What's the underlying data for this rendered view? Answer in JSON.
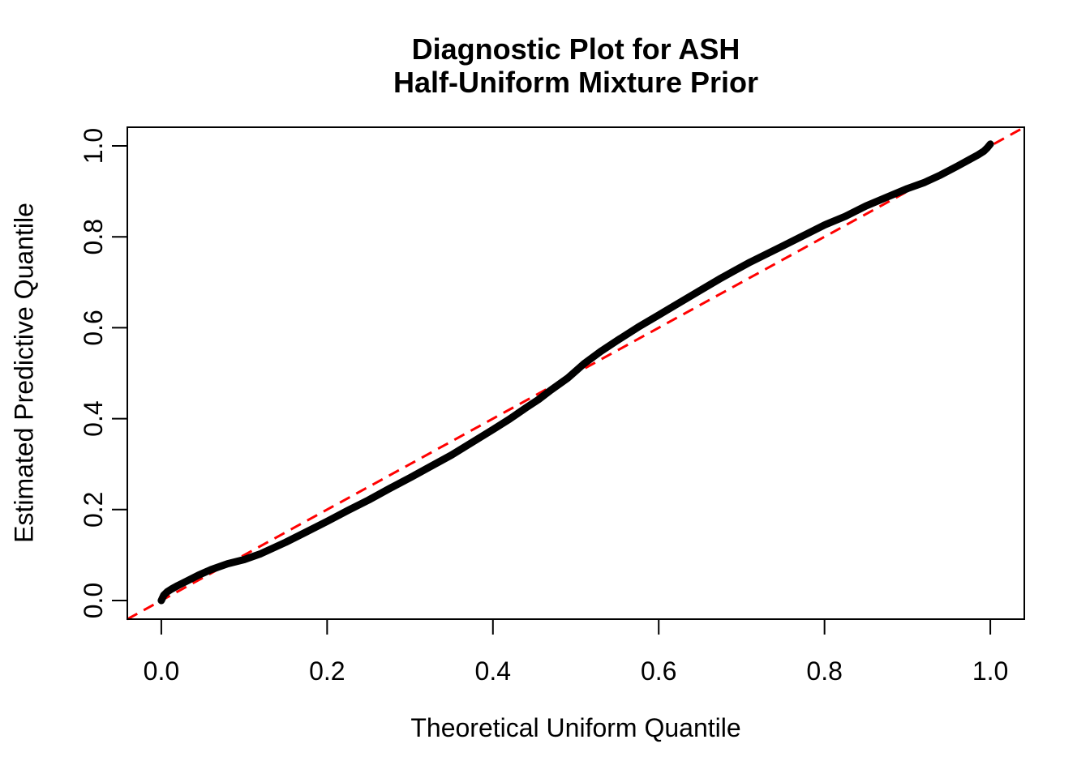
{
  "chart_data": {
    "type": "scatter",
    "title_lines": [
      "Diagnostic Plot for ASH",
      "Half-Uniform Mixture Prior"
    ],
    "xlabel": "Theoretical Uniform Quantile",
    "ylabel": "Estimated Predictive Quantile",
    "xlim": [
      -0.041,
      1.041
    ],
    "ylim": [
      -0.041,
      1.041
    ],
    "grid": false,
    "legend": null,
    "xticks": {
      "values": [
        0.0,
        0.2,
        0.4,
        0.6,
        0.8,
        1.0
      ],
      "labels": [
        "0.0",
        "0.2",
        "0.4",
        "0.6",
        "0.8",
        "1.0"
      ]
    },
    "yticks": {
      "values": [
        0.0,
        0.2,
        0.4,
        0.6,
        0.8,
        1.0
      ],
      "labels": [
        "0.0",
        "0.2",
        "0.4",
        "0.6",
        "0.8",
        "1.0"
      ]
    },
    "colors": {
      "curve": "#000000",
      "reference": "#FF0000",
      "frame": "#000000",
      "text": "#000000"
    },
    "reference_line": {
      "intercept": 0,
      "slope": 1,
      "style": "dashed"
    },
    "series": [
      {
        "name": "estimated-vs-theoretical-quantiles",
        "points": [
          [
            0.0,
            0.0
          ],
          [
            0.003,
            0.012
          ],
          [
            0.007,
            0.019
          ],
          [
            0.012,
            0.025
          ],
          [
            0.02,
            0.033
          ],
          [
            0.03,
            0.042
          ],
          [
            0.045,
            0.056
          ],
          [
            0.06,
            0.068
          ],
          [
            0.08,
            0.081
          ],
          [
            0.1,
            0.09
          ],
          [
            0.12,
            0.103
          ],
          [
            0.15,
            0.128
          ],
          [
            0.175,
            0.151
          ],
          [
            0.2,
            0.174
          ],
          [
            0.225,
            0.198
          ],
          [
            0.25,
            0.221
          ],
          [
            0.275,
            0.246
          ],
          [
            0.3,
            0.27
          ],
          [
            0.325,
            0.295
          ],
          [
            0.35,
            0.32
          ],
          [
            0.375,
            0.348
          ],
          [
            0.4,
            0.376
          ],
          [
            0.42,
            0.399
          ],
          [
            0.44,
            0.424
          ],
          [
            0.455,
            0.442
          ],
          [
            0.47,
            0.463
          ],
          [
            0.49,
            0.489
          ],
          [
            0.51,
            0.521
          ],
          [
            0.53,
            0.548
          ],
          [
            0.55,
            0.572
          ],
          [
            0.575,
            0.601
          ],
          [
            0.6,
            0.628
          ],
          [
            0.625,
            0.655
          ],
          [
            0.65,
            0.682
          ],
          [
            0.675,
            0.709
          ],
          [
            0.69,
            0.724
          ],
          [
            0.71,
            0.744
          ],
          [
            0.73,
            0.762
          ],
          [
            0.75,
            0.78
          ],
          [
            0.775,
            0.803
          ],
          [
            0.8,
            0.826
          ],
          [
            0.825,
            0.845
          ],
          [
            0.85,
            0.868
          ],
          [
            0.875,
            0.887
          ],
          [
            0.9,
            0.906
          ],
          [
            0.92,
            0.919
          ],
          [
            0.94,
            0.936
          ],
          [
            0.96,
            0.955
          ],
          [
            0.975,
            0.97
          ],
          [
            0.985,
            0.98
          ],
          [
            0.992,
            0.988
          ],
          [
            0.996,
            0.995
          ],
          [
            1.0,
            1.004
          ]
        ]
      }
    ]
  }
}
